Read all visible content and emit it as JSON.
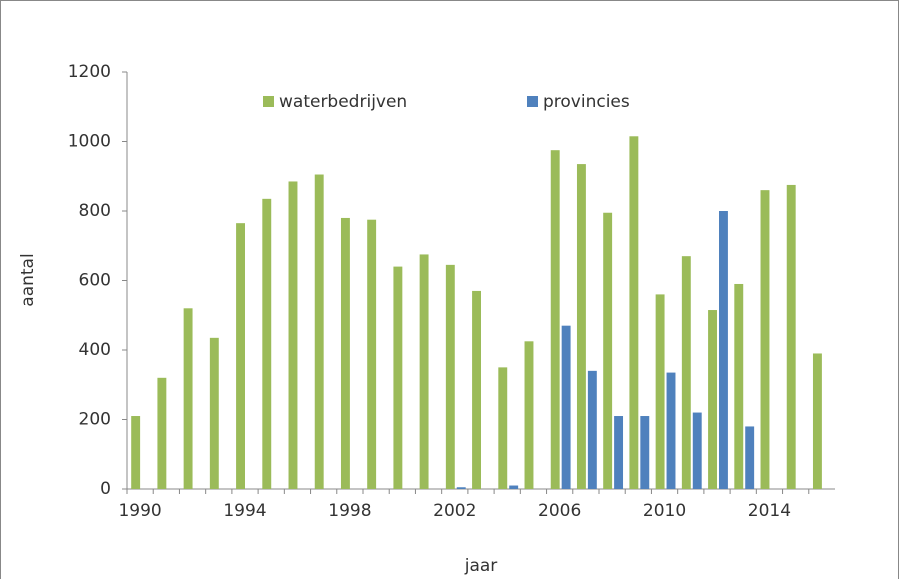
{
  "chart_data": {
    "type": "bar",
    "categories": [
      "1990",
      null,
      null,
      null,
      "1994",
      null,
      null,
      null,
      "1998",
      null,
      null,
      null,
      "2002",
      null,
      null,
      null,
      "2006",
      null,
      null,
      null,
      "2010",
      null,
      null,
      null,
      "2014",
      null,
      null
    ],
    "series": [
      {
        "name": "waterbedrijven",
        "color": "#9bbb59",
        "values": [
          210,
          320,
          520,
          435,
          765,
          835,
          885,
          905,
          780,
          775,
          640,
          675,
          645,
          570,
          350,
          425,
          975,
          935,
          795,
          1015,
          560,
          670,
          515,
          590,
          860,
          875,
          390
        ]
      },
      {
        "name": "provincies",
        "color": "#4f81bd",
        "values": [
          null,
          null,
          null,
          null,
          null,
          null,
          null,
          null,
          null,
          null,
          null,
          null,
          5,
          null,
          10,
          null,
          470,
          340,
          210,
          210,
          335,
          220,
          800,
          180,
          null,
          null,
          null
        ]
      }
    ],
    "ylim": [
      0,
      1200
    ],
    "yticks": [
      0,
      200,
      400,
      600,
      800,
      1000,
      1200
    ],
    "y_label": "aantal",
    "x_label": "jaar",
    "legend": "top"
  }
}
